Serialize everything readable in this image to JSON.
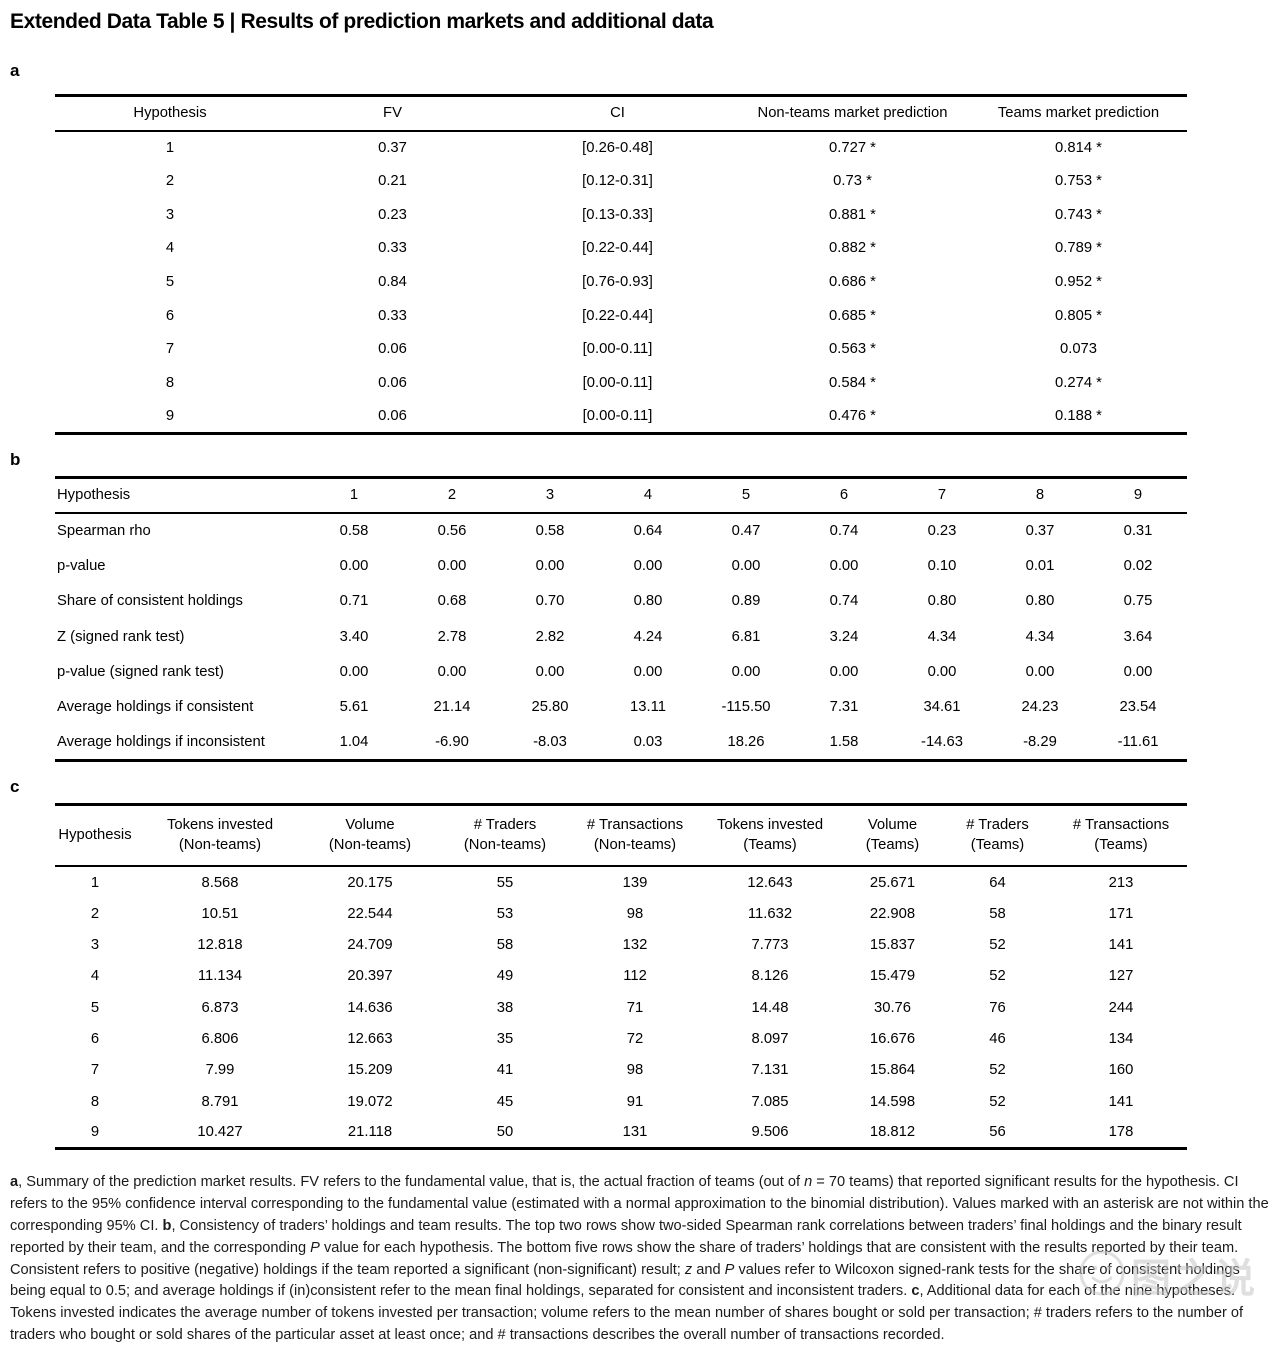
{
  "title": "Extended Data Table 5 | Results of prediction markets and additional data",
  "sections": {
    "a": "a",
    "b": "b",
    "c": "c"
  },
  "table_a": {
    "headers": [
      "Hypothesis",
      "FV",
      "CI",
      "Non-teams market prediction",
      "Teams market prediction"
    ],
    "rows": [
      [
        "1",
        "0.37",
        "[0.26-0.48]",
        "0.727 *",
        "0.814 *"
      ],
      [
        "2",
        "0.21",
        "[0.12-0.31]",
        "0.73 *",
        "0.753 *"
      ],
      [
        "3",
        "0.23",
        "[0.13-0.33]",
        "0.881 *",
        "0.743 *"
      ],
      [
        "4",
        "0.33",
        "[0.22-0.44]",
        "0.882 *",
        "0.789 *"
      ],
      [
        "5",
        "0.84",
        "[0.76-0.93]",
        "0.686 *",
        "0.952 *"
      ],
      [
        "6",
        "0.33",
        "[0.22-0.44]",
        "0.685 *",
        "0.805 *"
      ],
      [
        "7",
        "0.06",
        "[0.00-0.11]",
        "0.563 *",
        "0.073"
      ],
      [
        "8",
        "0.06",
        "[0.00-0.11]",
        "0.584 *",
        "0.274 *"
      ],
      [
        "9",
        "0.06",
        "[0.00-0.11]",
        "0.476 *",
        "0.188 *"
      ]
    ]
  },
  "table_b": {
    "headers": [
      "Hypothesis",
      "1",
      "2",
      "3",
      "4",
      "5",
      "6",
      "7",
      "8",
      "9"
    ],
    "rows": [
      [
        "Spearman rho",
        "0.58",
        "0.56",
        "0.58",
        "0.64",
        "0.47",
        "0.74",
        "0.23",
        "0.37",
        "0.31"
      ],
      [
        "p-value",
        "0.00",
        "0.00",
        "0.00",
        "0.00",
        "0.00",
        "0.00",
        "0.10",
        "0.01",
        "0.02"
      ],
      [
        "Share of consistent holdings",
        "0.71",
        "0.68",
        "0.70",
        "0.80",
        "0.89",
        "0.74",
        "0.80",
        "0.80",
        "0.75"
      ],
      [
        "Z (signed rank test)",
        "3.40",
        "2.78",
        "2.82",
        "4.24",
        "6.81",
        "3.24",
        "4.34",
        "4.34",
        "3.64"
      ],
      [
        "p-value (signed rank test)",
        "0.00",
        "0.00",
        "0.00",
        "0.00",
        "0.00",
        "0.00",
        "0.00",
        "0.00",
        "0.00"
      ],
      [
        "Average holdings if consistent",
        "5.61",
        "21.14",
        "25.80",
        "13.11",
        "-115.50",
        "7.31",
        "34.61",
        "24.23",
        "23.54"
      ],
      [
        "Average holdings if inconsistent",
        "1.04",
        "-6.90",
        "-8.03",
        "0.03",
        "18.26",
        "1.58",
        "-14.63",
        "-8.29",
        "-11.61"
      ]
    ]
  },
  "table_c": {
    "headers": [
      "Hypothesis",
      "Tokens invested\n(Non-teams)",
      "Volume\n(Non-teams)",
      "# Traders\n(Non-teams)",
      "# Transactions\n(Non-teams)",
      "Tokens invested\n(Teams)",
      "Volume\n(Teams)",
      "# Traders\n(Teams)",
      "# Transactions\n(Teams)"
    ],
    "rows": [
      [
        "1",
        "8.568",
        "20.175",
        "55",
        "139",
        "12.643",
        "25.671",
        "64",
        "213"
      ],
      [
        "2",
        "10.51",
        "22.544",
        "53",
        "98",
        "11.632",
        "22.908",
        "58",
        "171"
      ],
      [
        "3",
        "12.818",
        "24.709",
        "58",
        "132",
        "7.773",
        "15.837",
        "52",
        "141"
      ],
      [
        "4",
        "11.134",
        "20.397",
        "49",
        "112",
        "8.126",
        "15.479",
        "52",
        "127"
      ],
      [
        "5",
        "6.873",
        "14.636",
        "38",
        "71",
        "14.48",
        "30.76",
        "76",
        "244"
      ],
      [
        "6",
        "6.806",
        "12.663",
        "35",
        "72",
        "8.097",
        "16.676",
        "46",
        "134"
      ],
      [
        "7",
        "7.99",
        "15.209",
        "41",
        "98",
        "7.131",
        "15.864",
        "52",
        "160"
      ],
      [
        "8",
        "8.791",
        "19.072",
        "45",
        "91",
        "7.085",
        "14.598",
        "52",
        "141"
      ],
      [
        "9",
        "10.427",
        "21.118",
        "50",
        "131",
        "9.506",
        "18.812",
        "56",
        "178"
      ]
    ]
  },
  "footnote": {
    "segments": [
      {
        "text": "a",
        "bold": true
      },
      {
        "text": ", Summary of the prediction market results. FV refers to the fundamental value, that is, the actual fraction of teams (out of "
      },
      {
        "text": "n",
        "italic": true
      },
      {
        "text": " = 70 teams) that reported significant results for the hypothesis. CI refers to the 95% confidence interval corresponding to the fundamental value (estimated with a normal approximation to the binomial distribution). Values marked with an asterisk are not within the corresponding 95% CI. "
      },
      {
        "text": "b",
        "bold": true
      },
      {
        "text": ", Consistency of traders’ holdings and team results. The top two rows show two-sided Spearman rank correlations between traders’ final holdings and the binary result reported by their team, and the corresponding "
      },
      {
        "text": "P",
        "italic": true
      },
      {
        "text": " value for each hypothesis. The bottom five rows show the share of traders’ holdings that are consistent with the results reported by their team. Consistent refers to positive (negative) holdings if the team reported a significant (non-significant) result; "
      },
      {
        "text": "z",
        "italic": true
      },
      {
        "text": " and "
      },
      {
        "text": "P",
        "italic": true
      },
      {
        "text": " values refer to Wilcoxon signed-rank tests for the share of consistent holdings being equal to 0.5; and average holdings if (in)consistent refer to the mean final holdings, separated for consistent and inconsistent traders. "
      },
      {
        "text": "c",
        "bold": true
      },
      {
        "text": ", Additional data for each of the nine hypotheses. Tokens invested indicates the average number of tokens invested per transaction; volume refers to the mean number of shares bought or sold per transaction; # traders refers to the number of traders who bought or sold shares of the particular asset at least once; and # transactions describes the overall number of transactions recorded."
      }
    ]
  },
  "watermark": {
    "text": "图之说"
  }
}
